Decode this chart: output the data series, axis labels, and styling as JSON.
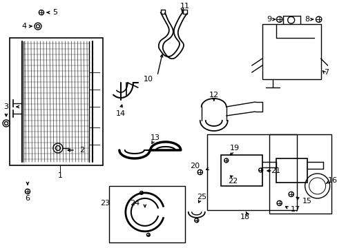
{
  "bg_color": "#ffffff",
  "line_color": "#000000",
  "lw": 1.0,
  "fig_w": 4.89,
  "fig_h": 3.6,
  "dpi": 100
}
